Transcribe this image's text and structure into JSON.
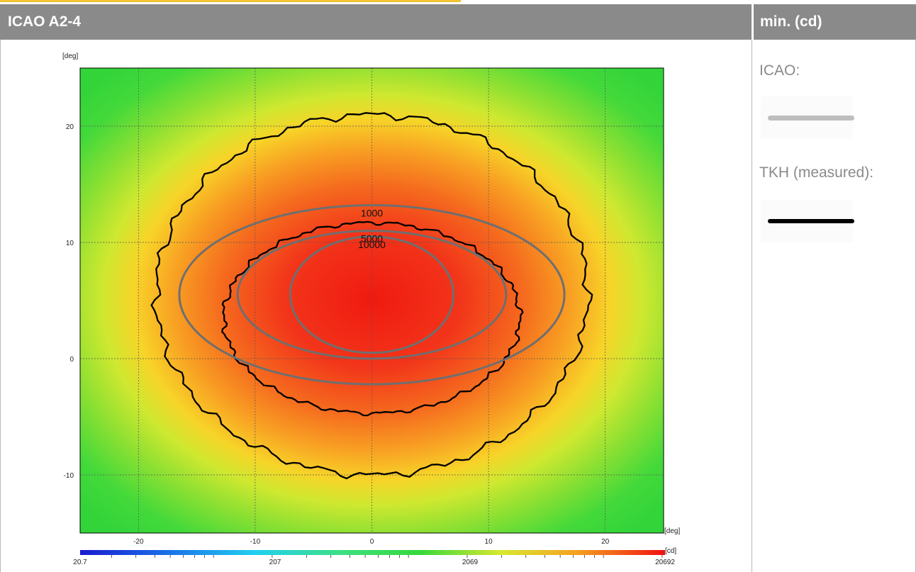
{
  "header": {
    "title": "ICAO A2-4",
    "side_title": "min. (cd)"
  },
  "legend": {
    "icao_label": "ICAO:",
    "measured_label": "TKH (measured):",
    "icao_color": "#bdbdbd",
    "measured_color": "#000000"
  },
  "chart_data": {
    "type": "heatmap",
    "x_unit": "[deg]",
    "y_unit": "[deg]",
    "xlim": [
      -25,
      25
    ],
    "ylim": [
      -15,
      25
    ],
    "x_ticks": [
      "-20",
      "-10",
      "0",
      "10",
      "20"
    ],
    "y_ticks": [
      "-10",
      "0",
      "10",
      "20"
    ],
    "grid": true,
    "colorbar": {
      "unit": "[cd]",
      "scale": "log",
      "min": 20.7,
      "max": 20692,
      "tick_labels": [
        "20.7",
        "207",
        "2069",
        "20692"
      ]
    },
    "icao_isocandela": [
      {
        "label": "1000",
        "center": [
          0,
          5.5
        ],
        "half_width": 16.5,
        "half_height": 7.7
      },
      {
        "label": "5000",
        "center": [
          0,
          5.5
        ],
        "half_width": 11.5,
        "half_height": 5.5
      },
      {
        "label": "10000",
        "center": [
          0,
          5.5
        ],
        "half_width": 7,
        "half_height": 5
      }
    ],
    "measured_contours": [
      {
        "center": [
          0,
          5.5
        ],
        "half_width": 18.5,
        "half_height": 15.5
      },
      {
        "center": [
          0,
          3.5
        ],
        "half_width": 12.7,
        "half_height": 8.2
      }
    ],
    "peak_center": [
      0,
      5.5
    ]
  }
}
